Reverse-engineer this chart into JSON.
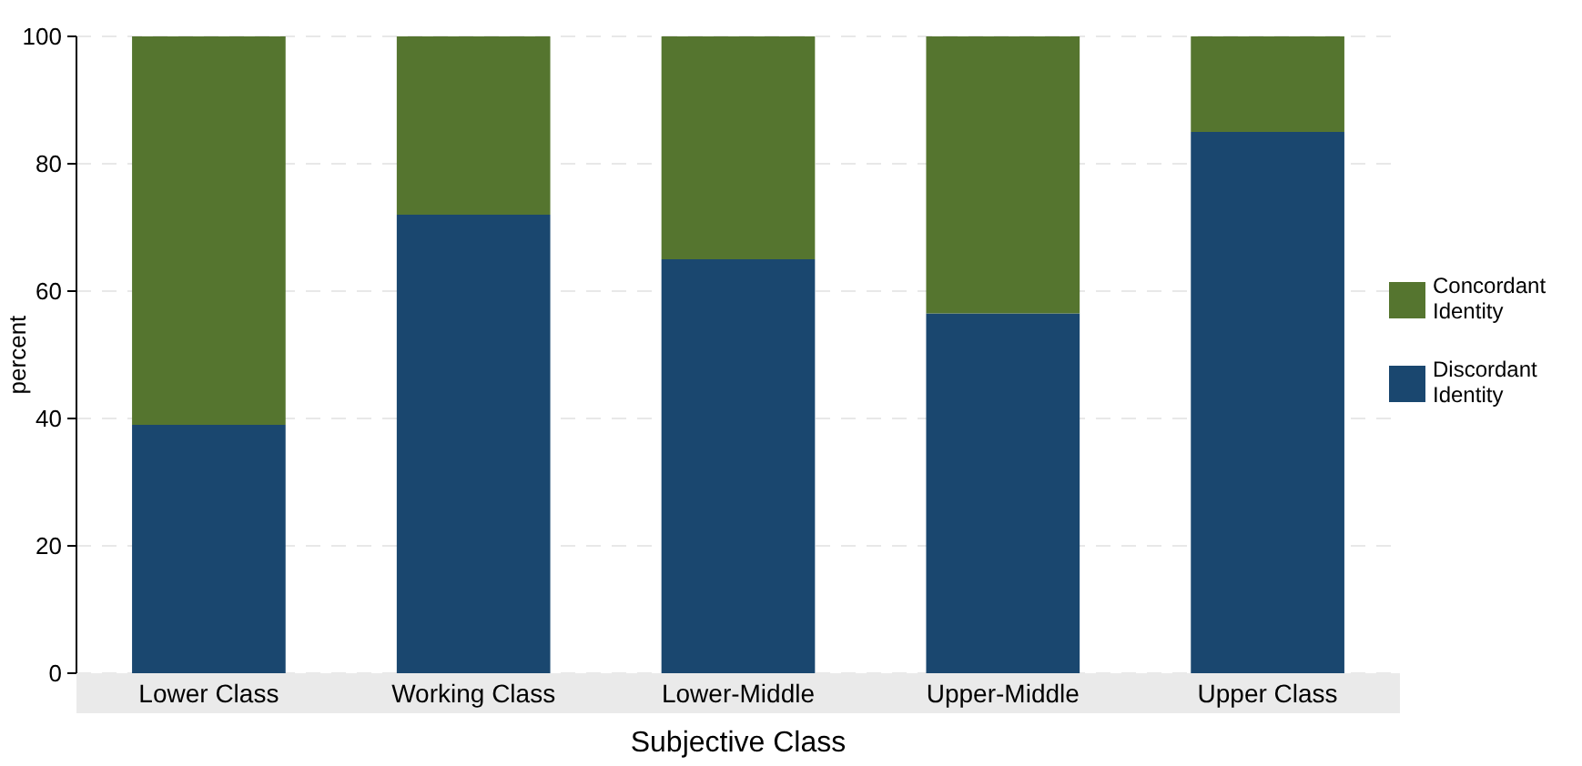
{
  "chart_data": {
    "type": "bar",
    "stacked": true,
    "xlabel": "Subjective Class",
    "ylabel": "percent",
    "categories": [
      "Lower Class",
      "Working Class",
      "Lower-Middle",
      "Upper-Middle",
      "Upper Class"
    ],
    "series": [
      {
        "name": "Discordant Identity",
        "color": "#1a476f",
        "values": [
          39,
          72,
          65,
          56.5,
          85
        ]
      },
      {
        "name": "Concordant Identity",
        "color": "#55752f",
        "values": [
          61,
          28,
          35,
          43.5,
          15
        ]
      }
    ],
    "ylim": [
      0,
      100
    ],
    "yticks": [
      0,
      20,
      40,
      60,
      80,
      100
    ],
    "grid": "y",
    "legend": "right"
  }
}
